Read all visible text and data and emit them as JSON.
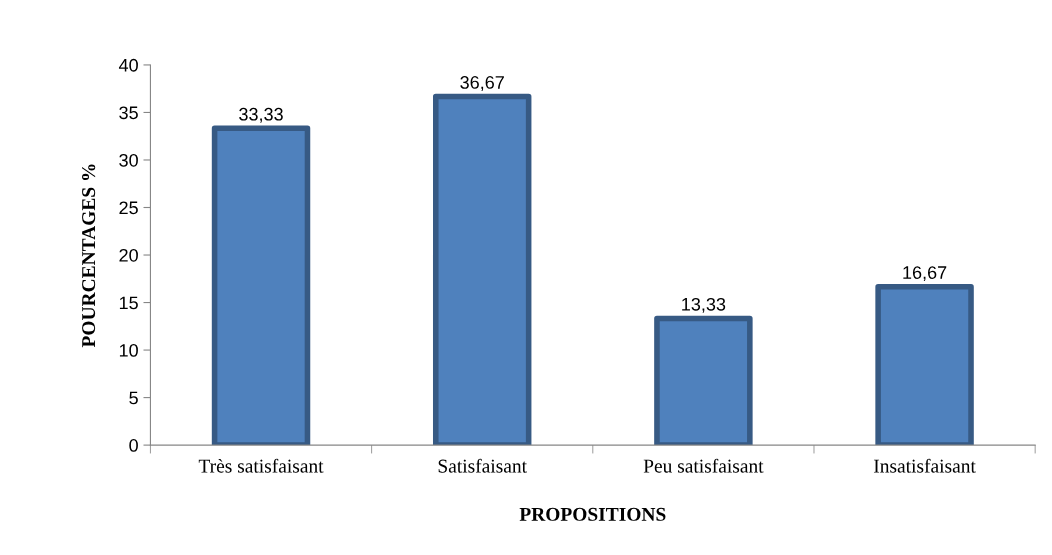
{
  "chart_data": {
    "type": "bar",
    "xlabel": "PROPOSITIONS",
    "ylabel": "POURCENTAGES %",
    "categories": [
      "Très satisfaisant",
      "Satisfaisant",
      "Peu satisfaisant",
      "Insatisfaisant"
    ],
    "values": [
      33.33,
      36.67,
      13.33,
      16.67
    ],
    "value_labels": [
      "33,33",
      "36,67",
      "13,33",
      "16,67"
    ],
    "color": "#4f81bd",
    "ylim": [
      0,
      40
    ],
    "yticks": [
      0,
      5,
      10,
      15,
      20,
      25,
      30,
      35,
      40
    ],
    "grid": false,
    "legend": false
  }
}
